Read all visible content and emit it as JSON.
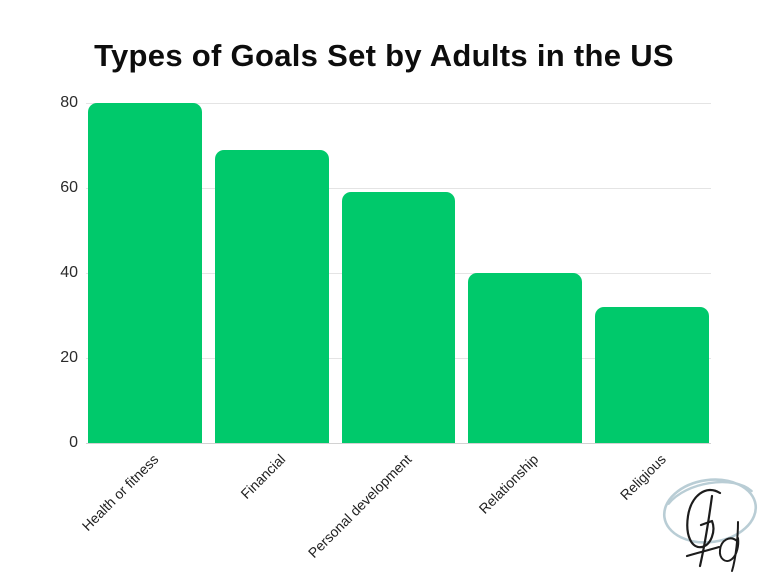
{
  "chart_data": {
    "type": "bar",
    "title": "Types of Goals Set by Adults in the US",
    "categories": [
      "Health or fitness",
      "Financial",
      "Personal development",
      "Relationship",
      "Religious"
    ],
    "values": [
      80,
      69,
      59,
      40,
      32
    ],
    "xlabel": "",
    "ylabel": "",
    "ylim": [
      0,
      80
    ],
    "y_ticks": [
      0,
      20,
      40,
      60,
      80
    ],
    "grid": true,
    "legend_position": "none",
    "bar_color": "#00c96b",
    "gridline_color": "#e4e4e4",
    "baseline_color": "#d2d2d2",
    "tick_text_color": "#2b2b2b",
    "category_text_color": "#222222",
    "title_color": "#0d0d0d",
    "background_color": "#ffffff"
  },
  "logo": {
    "monogram": "Gd",
    "ellipse_color": "#b9cdd5",
    "ink_color": "#1c1c1c"
  }
}
